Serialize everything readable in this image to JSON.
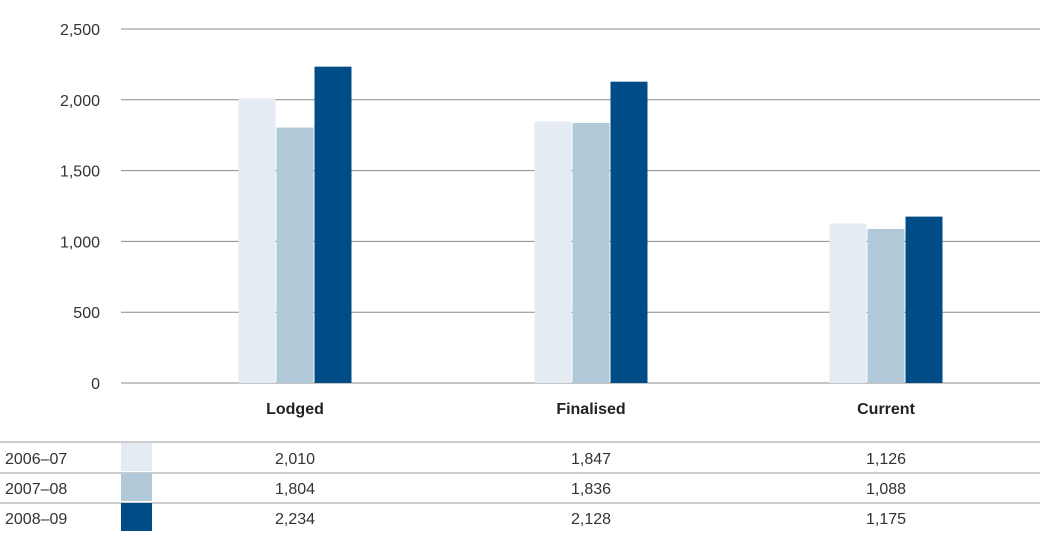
{
  "chart_data": {
    "type": "bar",
    "title": "",
    "xlabel": "",
    "ylabel": "",
    "categories": [
      "Lodged",
      "Finalised",
      "Current"
    ],
    "series": [
      {
        "name": "2006–07",
        "values": [
          2010,
          1847,
          1126
        ],
        "labels": [
          "2,010",
          "1,847",
          "1,126"
        ],
        "color": "#e4ebf2"
      },
      {
        "name": "2007–08",
        "values": [
          1804,
          1836,
          1088
        ],
        "labels": [
          "1,804",
          "1,836",
          "1,088"
        ],
        "color": "#b1c8d9"
      },
      {
        "name": "2008–09",
        "values": [
          2234,
          2128,
          1175
        ],
        "labels": [
          "2,234",
          "2,128",
          "1,175"
        ],
        "color": "#004c87"
      }
    ],
    "ylim": [
      0,
      2500
    ],
    "yticks": [
      0,
      500,
      1000,
      1500,
      2000,
      2500
    ],
    "ytick_labels": [
      "0",
      "500",
      "1,000",
      "1,500",
      "2,000",
      "2,500"
    ],
    "grid": true,
    "legend": "data table below chart"
  }
}
